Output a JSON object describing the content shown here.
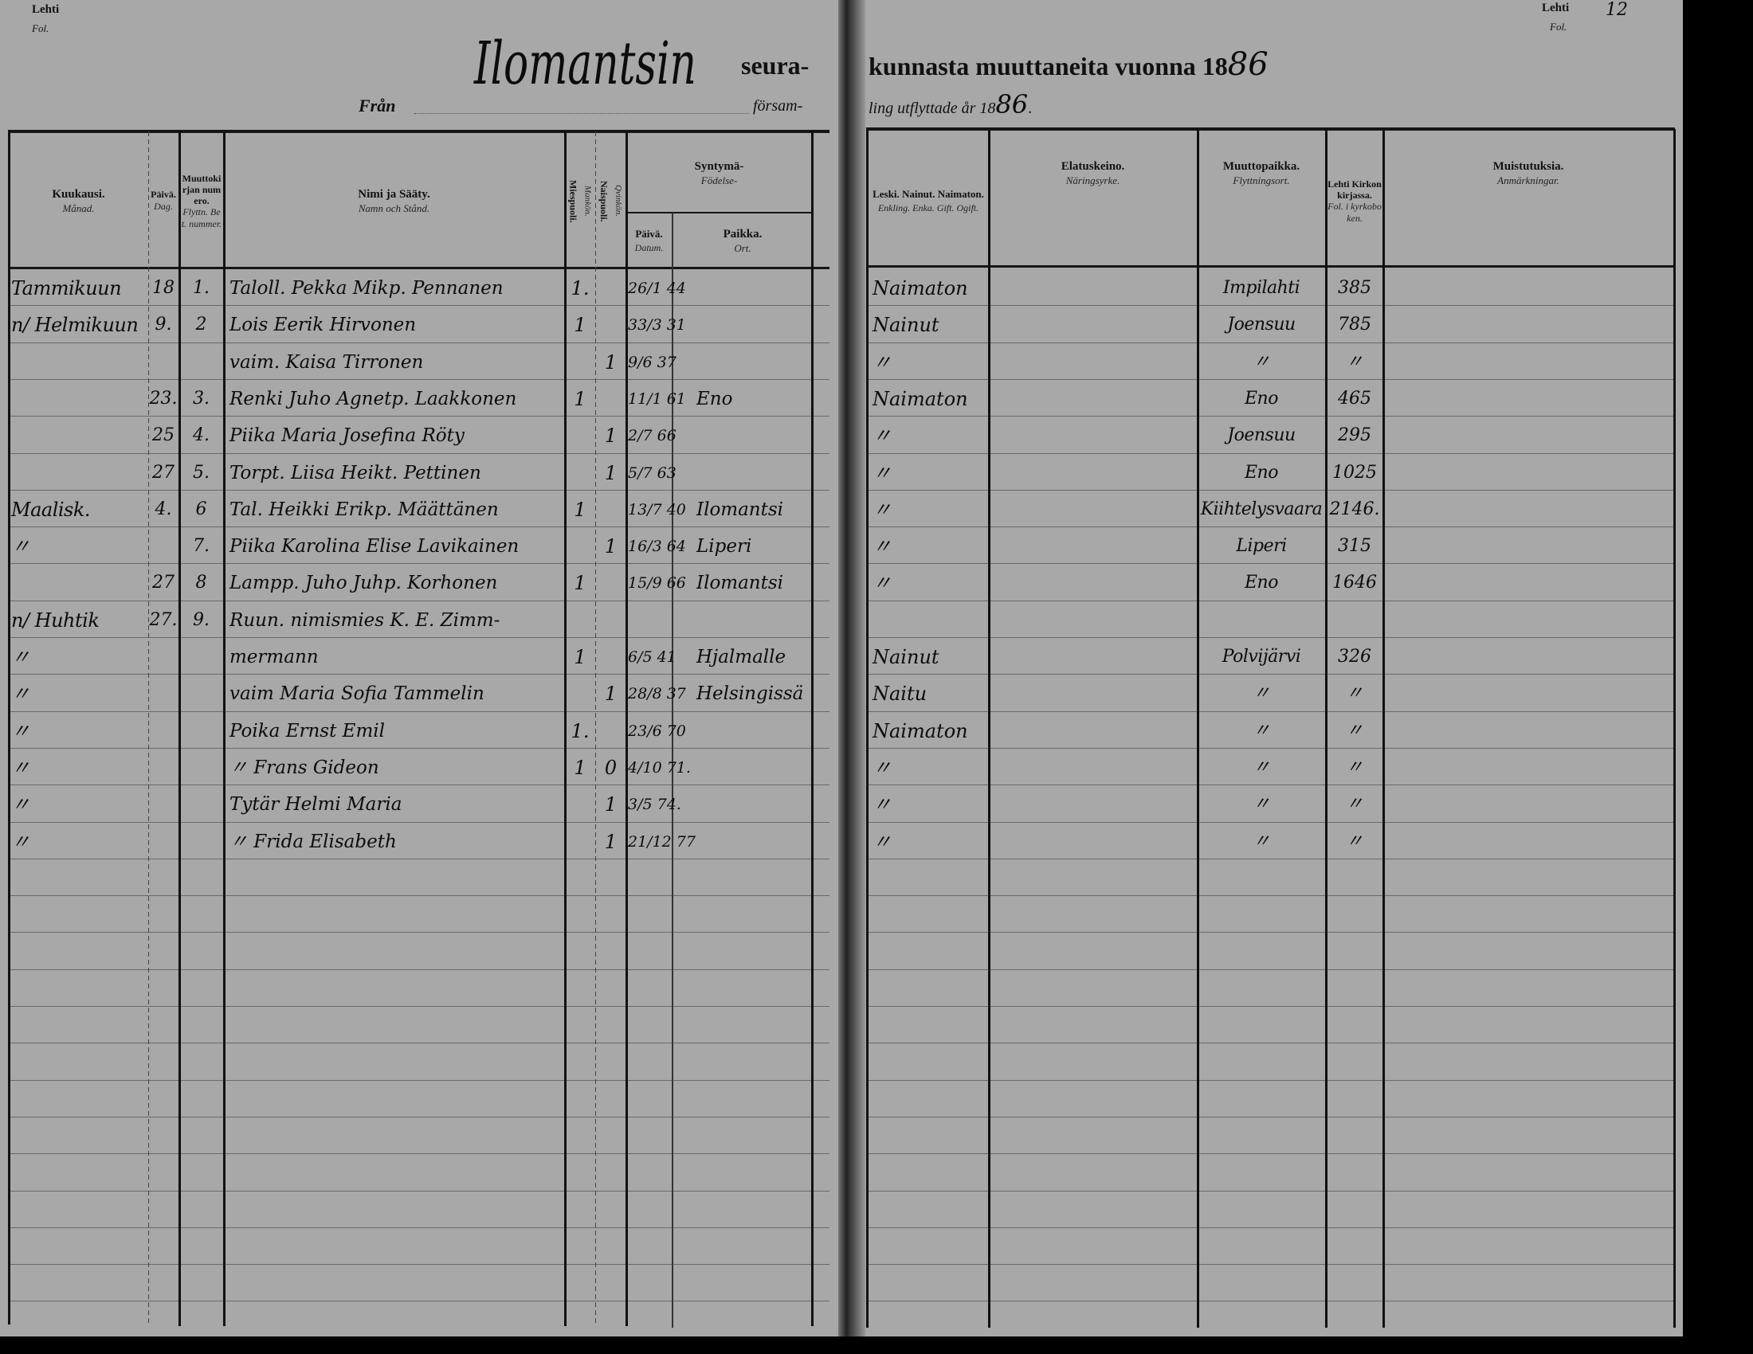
{
  "corners": {
    "left_lehti": "Lehti",
    "left_fol": "Fol.",
    "right_lehti": "Lehti",
    "right_fol": "Fol.",
    "right_page_number": "12"
  },
  "title": {
    "parish_handwritten": "Ilomantsin",
    "printed_part1": "seura-",
    "printed_part2": "kunnasta muuttaneita vuonna 18",
    "year_handwritten": "86",
    "from_label": "Från",
    "swedish_part1": "försam-",
    "swedish_part2": "ling utflyttade år 18",
    "swedish_year_handwritten": "86",
    "swedish_end": "."
  },
  "headers": {
    "month": {
      "fi": "Kuukausi.",
      "sv": "Månad."
    },
    "day": {
      "fi": "Päivä.",
      "sv": "Dag."
    },
    "number": {
      "fi": "Muuttokirjan numero.",
      "sv": "Flyttn. Bet. nummer."
    },
    "name": {
      "fi": "Nimi ja Sääty.",
      "sv": "Namn och Stånd."
    },
    "male": {
      "fi": "Miespuoli.",
      "sv": "Mankön."
    },
    "female": {
      "fi": "Naispuoli.",
      "sv": "Qvinkön."
    },
    "birth": {
      "fi": "Syntymä-",
      "sv": "Födelse-"
    },
    "birth_date": {
      "fi": "Päivä.",
      "sv": "Datum."
    },
    "birth_place": {
      "fi": "Paikka.",
      "sv": "Ort."
    },
    "marital": {
      "fi": "Leski. Nainut. Naimaton.",
      "sv": "Enkling. Enka. Gift. Ogift."
    },
    "occupation": {
      "fi": "Elatuskeino.",
      "sv": "Näringsyrke."
    },
    "destination": {
      "fi": "Muuttopaikka.",
      "sv": "Flyttningsort."
    },
    "folio": {
      "fi": "Lehti Kirkonkirjassa.",
      "sv": "Fol. i kyrkoboken."
    },
    "remarks": {
      "fi": "Muistutuksia.",
      "sv": "Anmärkningar."
    }
  },
  "rows": [
    {
      "month": "Tammikuun",
      "day": "18",
      "number": "1.",
      "name": "Taloll. Pekka Mikp. Pennanen",
      "male": "1.",
      "female": "",
      "birth_date": "26/1 44",
      "birth_place": "",
      "marital": "Naimaton",
      "occupation": "",
      "destination": "Impilahti",
      "folio": "385"
    },
    {
      "month": "n/ Helmikuun",
      "day": "9.",
      "number": "2",
      "name": "Lois Eerik Hirvonen",
      "male": "1",
      "female": "",
      "birth_date": "33/3 31",
      "birth_place": "",
      "marital": "Nainut",
      "occupation": "",
      "destination": "Joensuu",
      "folio": "785"
    },
    {
      "month": "",
      "day": "",
      "number": "",
      "name": "vaim. Kaisa Tirronen",
      "male": "",
      "female": "1",
      "birth_date": "9/6 37",
      "birth_place": "",
      "marital": "〃",
      "occupation": "",
      "destination": "〃",
      "folio": "〃"
    },
    {
      "month": "",
      "day": "23.",
      "number": "3.",
      "name": "Renki Juho Agnetp. Laakkonen",
      "male": "1",
      "female": "",
      "birth_date": "11/1 61",
      "birth_place": "Eno",
      "marital": "Naimaton",
      "occupation": "",
      "destination": "Eno",
      "folio": "465"
    },
    {
      "month": "",
      "day": "25",
      "number": "4.",
      "name": "Piika Maria Josefina Röty",
      "male": "",
      "female": "1",
      "birth_date": "2/7 66",
      "birth_place": "",
      "marital": "〃",
      "occupation": "",
      "destination": "Joensuu",
      "folio": "295"
    },
    {
      "month": "",
      "day": "27",
      "number": "5.",
      "name": "Torpt. Liisa Heikt. Pettinen",
      "male": "",
      "female": "1",
      "birth_date": "5/7 63",
      "birth_place": "",
      "marital": "〃",
      "occupation": "",
      "destination": "Eno",
      "folio": "1025"
    },
    {
      "month": "Maalisk.",
      "day": "4.",
      "number": "6",
      "name": "Tal. Heikki Erikp. Määttänen",
      "male": "1",
      "female": "",
      "birth_date": "13/7 40",
      "birth_place": "Ilomantsi",
      "marital": "〃",
      "occupation": "",
      "destination": "Kiihtelysvaara",
      "folio": "2146."
    },
    {
      "month": "〃",
      "day": "",
      "number": "7.",
      "name": "Piika Karolina Elise Lavikainen",
      "male": "",
      "female": "1",
      "birth_date": "16/3 64",
      "birth_place": "Liperi",
      "marital": "〃",
      "occupation": "",
      "destination": "Liperi",
      "folio": "315"
    },
    {
      "month": "",
      "day": "27",
      "number": "8",
      "name": "Lampp. Juho Juhp. Korhonen",
      "male": "1",
      "female": "",
      "birth_date": "15/9 66",
      "birth_place": "Ilomantsi",
      "marital": "〃",
      "occupation": "",
      "destination": "Eno",
      "folio": "1646"
    },
    {
      "month": "n/ Huhtik",
      "day": "27.",
      "number": "9.",
      "name": "Ruun. nimismies K. E. Zimm-",
      "male": "",
      "female": "",
      "birth_date": "",
      "birth_place": "",
      "marital": "",
      "occupation": "",
      "destination": "",
      "folio": ""
    },
    {
      "month": "〃",
      "day": "",
      "number": "",
      "name": "mermann",
      "male": "1",
      "female": "",
      "birth_date": "6/5 41",
      "birth_place": "Hjalmalle",
      "marital": "Nainut",
      "occupation": "",
      "destination": "Polvijärvi",
      "folio": "326"
    },
    {
      "month": "〃",
      "day": "",
      "number": "",
      "name": "vaim Maria Sofia Tammelin",
      "male": "",
      "female": "1",
      "birth_date": "28/8 37",
      "birth_place": "Helsingissä",
      "marital": "Naitu",
      "occupation": "",
      "destination": "〃",
      "folio": "〃"
    },
    {
      "month": "〃",
      "day": "",
      "number": "",
      "name": "Poika Ernst Emil",
      "male": "1.",
      "female": "",
      "birth_date": "23/6 70",
      "birth_place": "",
      "marital": "Naimaton",
      "occupation": "",
      "destination": "〃",
      "folio": "〃"
    },
    {
      "month": "〃",
      "day": "",
      "number": "",
      "name": "〃 Frans Gideon",
      "male": "1",
      "female": "0",
      "birth_date": "4/10 71.",
      "birth_place": "",
      "marital": "〃",
      "occupation": "",
      "destination": "〃",
      "folio": "〃"
    },
    {
      "month": "〃",
      "day": "",
      "number": "",
      "name": "Tytär Helmi Maria",
      "male": "",
      "female": "1",
      "birth_date": "3/5 74.",
      "birth_place": "",
      "marital": "〃",
      "occupation": "",
      "destination": "〃",
      "folio": "〃"
    },
    {
      "month": "〃",
      "day": "",
      "number": "",
      "name": "〃 Frida Elisabeth",
      "male": "",
      "female": "1",
      "birth_date": "21/12 77",
      "birth_place": "",
      "marital": "〃",
      "occupation": "",
      "destination": "〃",
      "folio": "〃"
    }
  ]
}
